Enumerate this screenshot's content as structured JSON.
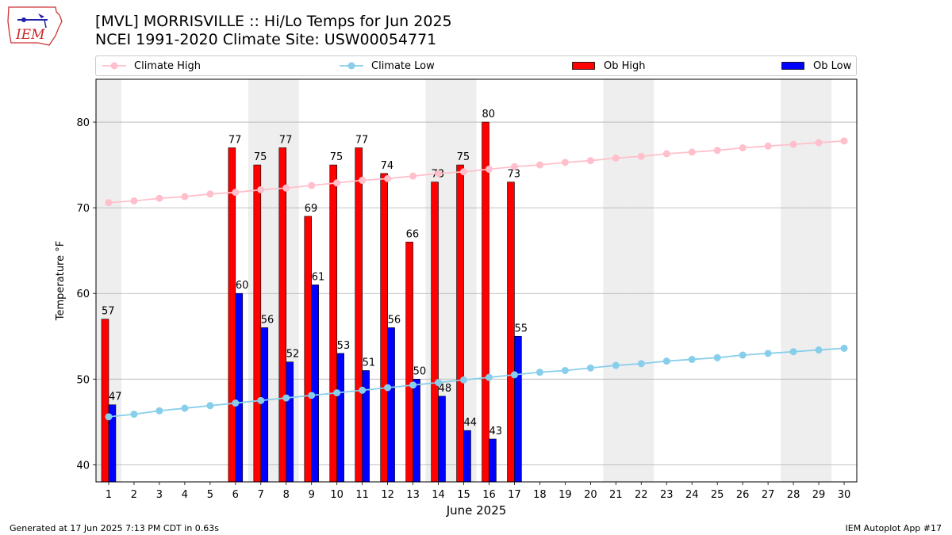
{
  "header": {
    "logo_text": "IEM",
    "title_line1": "[MVL] MORRISVILLE :: Hi/Lo Temps for Jun 2025",
    "title_line2": "NCEI 1991-2020 Climate Site: USW00054771"
  },
  "footer": {
    "left": "Generated at 17 Jun 2025 7:13 PM CDT in 0.63s",
    "right": "IEM Autoplot App #17"
  },
  "colors": {
    "climate_high": "#ffc0cb",
    "climate_low": "#87ceeb",
    "ob_high": "#ff0000",
    "ob_low": "#0000ff",
    "weekend_shade": "#eeeeee",
    "grid": "#b0b0b0"
  },
  "chart_data": {
    "type": "bar",
    "xlabel": "June 2025",
    "ylabel": "Temperature °F",
    "ylim": [
      38,
      85
    ],
    "xlim": [
      0.5,
      30.5
    ],
    "yticks": [
      40,
      50,
      60,
      70,
      80
    ],
    "grid": "horizontal",
    "legend_placement": "top",
    "shaded_days": [
      1,
      7,
      8,
      14,
      15,
      21,
      22,
      28,
      29
    ],
    "days": [
      1,
      2,
      3,
      4,
      5,
      6,
      7,
      8,
      9,
      10,
      11,
      12,
      13,
      14,
      15,
      16,
      17,
      18,
      19,
      20,
      21,
      22,
      23,
      24,
      25,
      26,
      27,
      28,
      29,
      30
    ],
    "series": [
      {
        "name": "Climate High",
        "kind": "line",
        "values": [
          70.6,
          70.8,
          71.1,
          71.3,
          71.6,
          71.8,
          72.1,
          72.3,
          72.6,
          72.9,
          73.2,
          73.4,
          73.7,
          74.0,
          74.2,
          74.5,
          74.8,
          75.0,
          75.3,
          75.5,
          75.8,
          76.0,
          76.3,
          76.5,
          76.7,
          77.0,
          77.2,
          77.4,
          77.6,
          77.8
        ]
      },
      {
        "name": "Climate Low",
        "kind": "line",
        "values": [
          45.6,
          45.9,
          46.3,
          46.6,
          46.9,
          47.2,
          47.5,
          47.8,
          48.1,
          48.4,
          48.7,
          49.0,
          49.3,
          49.6,
          49.9,
          50.2,
          50.5,
          50.8,
          51.0,
          51.3,
          51.6,
          51.8,
          52.1,
          52.3,
          52.5,
          52.8,
          53.0,
          53.2,
          53.4,
          53.6
        ]
      },
      {
        "name": "Ob High",
        "kind": "bar",
        "values": [
          57,
          null,
          null,
          null,
          null,
          77,
          75,
          77,
          69,
          75,
          77,
          74,
          66,
          73,
          75,
          80,
          73,
          null,
          null,
          null,
          null,
          null,
          null,
          null,
          null,
          null,
          null,
          null,
          null,
          null
        ]
      },
      {
        "name": "Ob Low",
        "kind": "bar",
        "values": [
          47,
          null,
          null,
          null,
          null,
          60,
          56,
          52,
          61,
          53,
          51,
          56,
          50,
          48,
          44,
          43,
          55,
          null,
          null,
          null,
          null,
          null,
          null,
          null,
          null,
          null,
          null,
          null,
          null,
          null
        ]
      }
    ]
  }
}
